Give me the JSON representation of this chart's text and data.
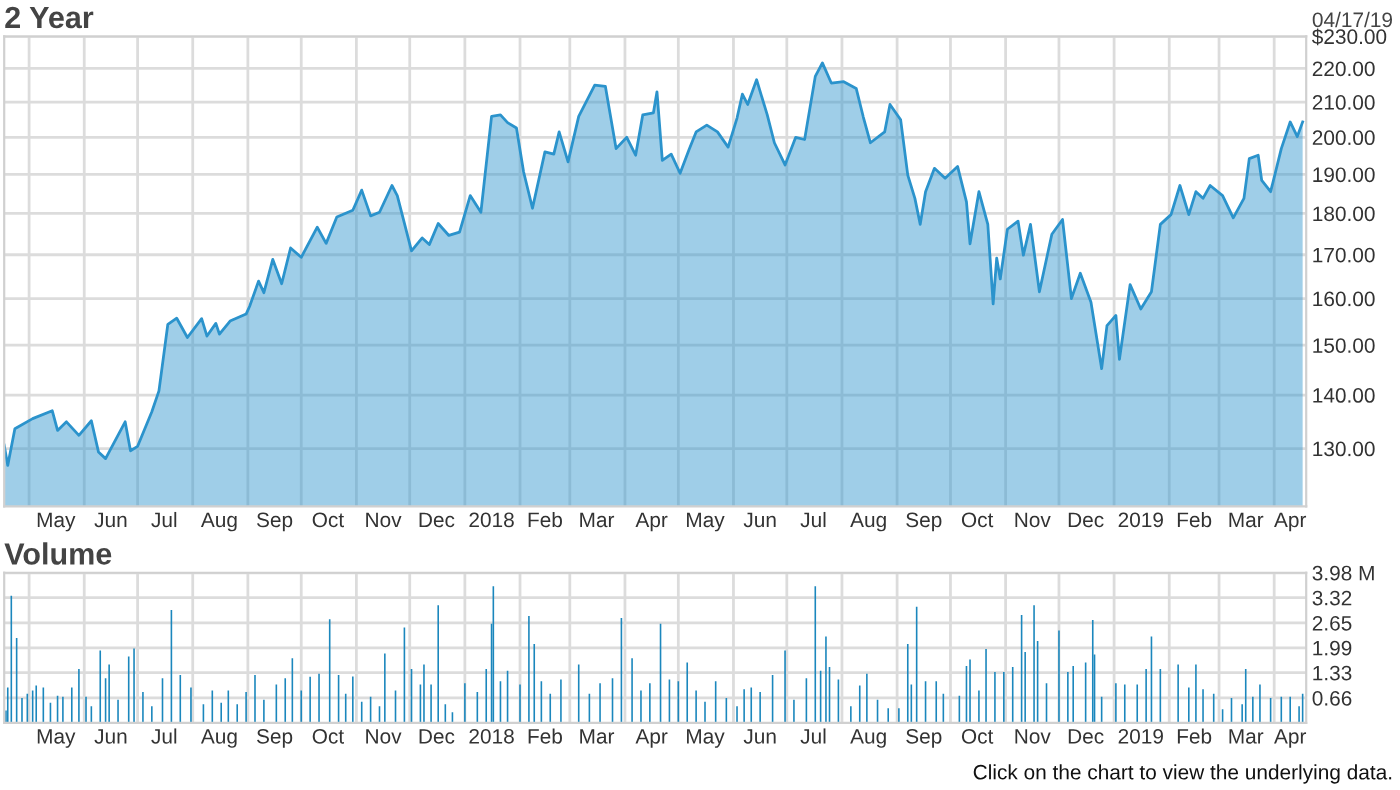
{
  "chart_data": [
    {
      "type": "area",
      "title": "2 Year",
      "annotations": [
        "04/17/19"
      ],
      "color": "#2b93cc",
      "log": true,
      "grid": true,
      "xlim": [
        "2017-04-17",
        "2019-04-19"
      ],
      "xticks": [
        {
          "value": "2017-05-01",
          "label": null
        },
        {
          "value": "2017-05-16",
          "label": "May"
        },
        {
          "value": "2017-06-01",
          "label": null
        },
        {
          "value": "2017-06-16",
          "label": "Jun"
        },
        {
          "value": "2017-07-01",
          "label": null
        },
        {
          "value": "2017-07-16",
          "label": "Jul"
        },
        {
          "value": "2017-08-01",
          "label": null
        },
        {
          "value": "2017-08-16",
          "label": "Aug"
        },
        {
          "value": "2017-09-01",
          "label": null
        },
        {
          "value": "2017-09-16",
          "label": "Sep"
        },
        {
          "value": "2017-10-01",
          "label": null
        },
        {
          "value": "2017-10-16",
          "label": "Oct"
        },
        {
          "value": "2017-11-01",
          "label": null
        },
        {
          "value": "2017-11-16",
          "label": "Nov"
        },
        {
          "value": "2017-12-01",
          "label": null
        },
        {
          "value": "2017-12-16",
          "label": "Dec"
        },
        {
          "value": "2018-01-01",
          "label": null
        },
        {
          "value": "2018-01-16",
          "label": "2018"
        },
        {
          "value": "2018-02-01",
          "label": null
        },
        {
          "value": "2018-02-15",
          "label": "Feb"
        },
        {
          "value": "2018-03-01",
          "label": null
        },
        {
          "value": "2018-03-16",
          "label": "Mar"
        },
        {
          "value": "2018-04-01",
          "label": null
        },
        {
          "value": "2018-04-16",
          "label": "Apr"
        },
        {
          "value": "2018-05-01",
          "label": null
        },
        {
          "value": "2018-05-16",
          "label": "May"
        },
        {
          "value": "2018-06-01",
          "label": null
        },
        {
          "value": "2018-06-16",
          "label": "Jun"
        },
        {
          "value": "2018-07-01",
          "label": null
        },
        {
          "value": "2018-07-16",
          "label": "Jul"
        },
        {
          "value": "2018-08-01",
          "label": null
        },
        {
          "value": "2018-08-16",
          "label": "Aug"
        },
        {
          "value": "2018-09-01",
          "label": null
        },
        {
          "value": "2018-09-16",
          "label": "Sep"
        },
        {
          "value": "2018-10-01",
          "label": null
        },
        {
          "value": "2018-10-16",
          "label": "Oct"
        },
        {
          "value": "2018-11-01",
          "label": null
        },
        {
          "value": "2018-11-16",
          "label": "Nov"
        },
        {
          "value": "2018-12-01",
          "label": null
        },
        {
          "value": "2018-12-16",
          "label": "Dec"
        },
        {
          "value": "2019-01-01",
          "label": null
        },
        {
          "value": "2019-01-16",
          "label": "2019"
        },
        {
          "value": "2019-02-01",
          "label": null
        },
        {
          "value": "2019-02-15",
          "label": "Feb"
        },
        {
          "value": "2019-03-01",
          "label": null
        },
        {
          "value": "2019-03-16",
          "label": "Mar"
        },
        {
          "value": "2019-04-01",
          "label": null
        },
        {
          "value": "2019-04-10",
          "label": "Apr"
        }
      ],
      "ylim": [
        120,
        230
      ],
      "yticks": [
        {
          "value": 130,
          "label": "130.00"
        },
        {
          "value": 140,
          "label": "140.00"
        },
        {
          "value": 150,
          "label": "150.00"
        },
        {
          "value": 160,
          "label": "160.00"
        },
        {
          "value": 170,
          "label": "170.00"
        },
        {
          "value": 180,
          "label": "180.00"
        },
        {
          "value": 190,
          "label": "190.00"
        },
        {
          "value": 200,
          "label": "200.00"
        },
        {
          "value": 210,
          "label": "210.00"
        },
        {
          "value": 220,
          "label": "220.00"
        },
        {
          "value": 230,
          "label": "$230.00"
        }
      ],
      "x": [
        "2017-04-17",
        "2017-04-19",
        "2017-04-23",
        "2017-05-03",
        "2017-05-14",
        "2017-05-17",
        "2017-05-22",
        "2017-05-29",
        "2017-06-05",
        "2017-06-09",
        "2017-06-13",
        "2017-06-18",
        "2017-06-24",
        "2017-06-27",
        "2017-07-01",
        "2017-07-09",
        "2017-07-13",
        "2017-07-18",
        "2017-07-23",
        "2017-07-29",
        "2017-08-06",
        "2017-08-09",
        "2017-08-14",
        "2017-08-16",
        "2017-08-22",
        "2017-08-31",
        "2017-09-02",
        "2017-09-07",
        "2017-09-10",
        "2017-09-15",
        "2017-09-20",
        "2017-09-25",
        "2017-10-01",
        "2017-10-10",
        "2017-10-15",
        "2017-10-21",
        "2017-10-30",
        "2017-11-04",
        "2017-11-09",
        "2017-11-14",
        "2017-11-21",
        "2017-11-24",
        "2017-12-02",
        "2017-12-08",
        "2017-12-12",
        "2017-12-17",
        "2017-12-23",
        "2017-12-29",
        "2018-01-04",
        "2018-01-10",
        "2018-01-16",
        "2018-01-21",
        "2018-01-25",
        "2018-01-30",
        "2018-02-03",
        "2018-02-08",
        "2018-02-15",
        "2018-02-20",
        "2018-02-23",
        "2018-02-28",
        "2018-03-06",
        "2018-03-15",
        "2018-03-21",
        "2018-03-27",
        "2018-04-02",
        "2018-04-07",
        "2018-04-11",
        "2018-04-17",
        "2018-04-19",
        "2018-04-22",
        "2018-04-27",
        "2018-05-02",
        "2018-05-07",
        "2018-05-11",
        "2018-05-17",
        "2018-05-23",
        "2018-05-29",
        "2018-06-03",
        "2018-06-06",
        "2018-06-09",
        "2018-06-14",
        "2018-06-20",
        "2018-06-24",
        "2018-06-30",
        "2018-07-06",
        "2018-07-11",
        "2018-07-17",
        "2018-07-21",
        "2018-07-26",
        "2018-08-02",
        "2018-08-09",
        "2018-08-13",
        "2018-08-17",
        "2018-08-25",
        "2018-08-28",
        "2018-09-03",
        "2018-09-07",
        "2018-09-11",
        "2018-09-14",
        "2018-09-17",
        "2018-09-22",
        "2018-09-28",
        "2018-10-05",
        "2018-10-10",
        "2018-10-12",
        "2018-10-17",
        "2018-10-22",
        "2018-10-25",
        "2018-10-27",
        "2018-10-29",
        "2018-11-02",
        "2018-11-08",
        "2018-11-11",
        "2018-11-15",
        "2018-11-20",
        "2018-11-27",
        "2018-12-03",
        "2018-12-08",
        "2018-12-13",
        "2018-12-19",
        "2018-12-25",
        "2018-12-28",
        "2019-01-02",
        "2019-01-04",
        "2019-01-10",
        "2019-01-16",
        "2019-01-22",
        "2019-01-27",
        "2019-02-02",
        "2019-02-07",
        "2019-02-12",
        "2019-02-16",
        "2019-02-20",
        "2019-02-24",
        "2019-03-03",
        "2019-03-09",
        "2019-03-15",
        "2019-03-18",
        "2019-03-23",
        "2019-03-25",
        "2019-03-30",
        "2019-04-05",
        "2019-04-10",
        "2019-04-14",
        "2019-04-17"
      ],
      "values": [
        130.6,
        127.0,
        133.6,
        135.5,
        137.0,
        133.3,
        134.9,
        132.4,
        135.1,
        129.4,
        128.2,
        131.2,
        134.9,
        129.6,
        130.4,
        136.8,
        140.8,
        154.4,
        155.7,
        151.6,
        155.6,
        151.9,
        154.6,
        152.3,
        155.1,
        156.6,
        158.3,
        163.9,
        161.3,
        168.9,
        163.3,
        171.6,
        169.4,
        176.6,
        172.7,
        179.1,
        180.8,
        185.9,
        179.4,
        180.3,
        187.1,
        184.5,
        170.9,
        174.0,
        172.4,
        177.5,
        174.6,
        175.4,
        184.5,
        180.3,
        205.9,
        206.3,
        204.1,
        202.6,
        190.7,
        181.3,
        196.0,
        195.4,
        201.5,
        193.3,
        205.9,
        215.0,
        214.6,
        196.9,
        200.0,
        195.1,
        206.3,
        206.9,
        213.0,
        193.7,
        195.4,
        190.3,
        196.6,
        201.5,
        203.4,
        201.5,
        197.3,
        205.4,
        212.3,
        209.3,
        216.6,
        206.3,
        198.5,
        192.5,
        200.0,
        199.4,
        217.6,
        221.7,
        215.6,
        216.0,
        214.0,
        205.7,
        198.5,
        201.5,
        209.3,
        204.9,
        189.8,
        183.8,
        177.3,
        185.5,
        191.6,
        189.0,
        192.1,
        182.9,
        172.6,
        185.5,
        177.3,
        158.8,
        169.2,
        164.4,
        176.1,
        178.1,
        169.9,
        177.3,
        161.5,
        174.9,
        178.5,
        160.0,
        165.7,
        159.2,
        145.2,
        154.1,
        156.3,
        147.1,
        163.1,
        157.7,
        161.5,
        177.3,
        179.7,
        187.1,
        179.7,
        185.5,
        183.8,
        187.1,
        184.5,
        178.9,
        183.8,
        194.2,
        195.1,
        188.4,
        185.5,
        196.9,
        204.3,
        200.2,
        204.3
      ]
    },
    {
      "type": "bar",
      "title": "Volume",
      "annotations": [
        "Click on the chart to view the underlying data."
      ],
      "color": "#1b87bd",
      "grid": true,
      "xlim": [
        "2017-04-17",
        "2019-04-19"
      ],
      "xticks": [
        {
          "value": "2017-05-01",
          "label": null
        },
        {
          "value": "2017-05-16",
          "label": "May"
        },
        {
          "value": "2017-06-01",
          "label": null
        },
        {
          "value": "2017-06-16",
          "label": "Jun"
        },
        {
          "value": "2017-07-01",
          "label": null
        },
        {
          "value": "2017-07-16",
          "label": "Jul"
        },
        {
          "value": "2017-08-01",
          "label": null
        },
        {
          "value": "2017-08-16",
          "label": "Aug"
        },
        {
          "value": "2017-09-01",
          "label": null
        },
        {
          "value": "2017-09-16",
          "label": "Sep"
        },
        {
          "value": "2017-10-01",
          "label": null
        },
        {
          "value": "2017-10-16",
          "label": "Oct"
        },
        {
          "value": "2017-11-01",
          "label": null
        },
        {
          "value": "2017-11-16",
          "label": "Nov"
        },
        {
          "value": "2017-12-01",
          "label": null
        },
        {
          "value": "2017-12-16",
          "label": "Dec"
        },
        {
          "value": "2018-01-01",
          "label": null
        },
        {
          "value": "2018-01-16",
          "label": "2018"
        },
        {
          "value": "2018-02-01",
          "label": null
        },
        {
          "value": "2018-02-15",
          "label": "Feb"
        },
        {
          "value": "2018-03-01",
          "label": null
        },
        {
          "value": "2018-03-16",
          "label": "Mar"
        },
        {
          "value": "2018-04-01",
          "label": null
        },
        {
          "value": "2018-04-16",
          "label": "Apr"
        },
        {
          "value": "2018-05-01",
          "label": null
        },
        {
          "value": "2018-05-16",
          "label": "May"
        },
        {
          "value": "2018-06-01",
          "label": null
        },
        {
          "value": "2018-06-16",
          "label": "Jun"
        },
        {
          "value": "2018-07-01",
          "label": null
        },
        {
          "value": "2018-07-16",
          "label": "Jul"
        },
        {
          "value": "2018-08-01",
          "label": null
        },
        {
          "value": "2018-08-16",
          "label": "Aug"
        },
        {
          "value": "2018-09-01",
          "label": null
        },
        {
          "value": "2018-09-16",
          "label": "Sep"
        },
        {
          "value": "2018-10-01",
          "label": null
        },
        {
          "value": "2018-10-16",
          "label": "Oct"
        },
        {
          "value": "2018-11-01",
          "label": null
        },
        {
          "value": "2018-11-16",
          "label": "Nov"
        },
        {
          "value": "2018-12-01",
          "label": null
        },
        {
          "value": "2018-12-16",
          "label": "Dec"
        },
        {
          "value": "2019-01-01",
          "label": null
        },
        {
          "value": "2019-01-16",
          "label": "2019"
        },
        {
          "value": "2019-02-01",
          "label": null
        },
        {
          "value": "2019-02-15",
          "label": "Feb"
        },
        {
          "value": "2019-03-01",
          "label": null
        },
        {
          "value": "2019-03-16",
          "label": "Mar"
        },
        {
          "value": "2019-04-01",
          "label": null
        },
        {
          "value": "2019-04-10",
          "label": "Apr"
        }
      ],
      "ylim": [
        0,
        3.98
      ],
      "yticks": [
        0.66,
        1.33,
        1.99,
        2.65,
        3.32,
        {
          "value": 3.98,
          "label": "3.98 M"
        }
      ],
      "x": [
        "2017-04-18",
        "2017-04-19",
        "2017-04-21",
        "2017-04-24",
        "2017-04-27",
        "2017-04-30",
        "2017-05-03",
        "2017-05-05",
        "2017-05-09",
        "2017-05-13",
        "2017-05-17",
        "2017-05-20",
        "2017-05-25",
        "2017-05-29",
        "2017-06-02",
        "2017-06-05",
        "2017-06-10",
        "2017-06-13",
        "2017-06-15",
        "2017-06-20",
        "2017-06-26",
        "2017-06-29",
        "2017-07-04",
        "2017-07-09",
        "2017-07-15",
        "2017-07-20",
        "2017-07-25",
        "2017-07-31",
        "2017-08-07",
        "2017-08-12",
        "2017-08-17",
        "2017-08-21",
        "2017-08-26",
        "2017-08-31",
        "2017-09-05",
        "2017-09-10",
        "2017-09-17",
        "2017-09-22",
        "2017-09-26",
        "2017-10-01",
        "2017-10-06",
        "2017-10-11",
        "2017-10-17",
        "2017-10-22",
        "2017-10-26",
        "2017-10-30",
        "2017-11-04",
        "2017-11-09",
        "2017-11-14",
        "2017-11-17",
        "2017-11-23",
        "2017-11-28",
        "2017-12-02",
        "2017-12-07",
        "2017-12-09",
        "2017-12-13",
        "2017-12-17",
        "2017-12-21",
        "2017-12-25",
        "2018-01-01",
        "2018-01-08",
        "2018-01-13",
        "2018-01-16",
        "2018-01-17",
        "2018-01-21",
        "2018-01-25",
        "2018-02-01",
        "2018-02-06",
        "2018-02-09",
        "2018-02-13",
        "2018-02-18",
        "2018-02-24",
        "2018-03-06",
        "2018-03-12",
        "2018-03-18",
        "2018-03-25",
        "2018-03-30",
        "2018-04-05",
        "2018-04-10",
        "2018-04-15",
        "2018-04-21",
        "2018-04-26",
        "2018-05-01",
        "2018-05-06",
        "2018-05-11",
        "2018-05-16",
        "2018-05-22",
        "2018-05-28",
        "2018-06-03",
        "2018-06-07",
        "2018-06-11",
        "2018-06-16",
        "2018-06-23",
        "2018-06-30",
        "2018-07-05",
        "2018-07-12",
        "2018-07-17",
        "2018-07-20",
        "2018-07-23",
        "2018-07-25",
        "2018-07-30",
        "2018-08-06",
        "2018-08-11",
        "2018-08-15",
        "2018-08-21",
        "2018-08-27",
        "2018-09-02",
        "2018-09-07",
        "2018-09-09",
        "2018-09-12",
        "2018-09-17",
        "2018-09-23",
        "2018-09-27",
        "2018-10-06",
        "2018-10-10",
        "2018-10-12",
        "2018-10-17",
        "2018-10-21",
        "2018-10-26",
        "2018-10-31",
        "2018-11-05",
        "2018-11-10",
        "2018-11-12",
        "2018-11-17",
        "2018-11-19",
        "2018-11-24",
        "2018-12-01",
        "2018-12-06",
        "2018-12-09",
        "2018-12-16",
        "2018-12-20",
        "2018-12-21",
        "2018-12-25",
        "2019-01-02",
        "2019-01-07",
        "2019-01-14",
        "2019-01-19",
        "2019-01-22",
        "2019-01-27",
        "2019-02-06",
        "2019-02-12",
        "2019-02-16",
        "2019-02-20",
        "2019-02-26",
        "2019-03-03",
        "2019-03-08",
        "2019-03-14",
        "2019-03-16",
        "2019-03-20",
        "2019-03-24",
        "2019-03-30",
        "2019-04-05",
        "2019-04-10",
        "2019-04-15",
        "2019-04-17"
      ],
      "values": [
        0.33,
        0.94,
        3.37,
        2.25,
        0.66,
        0.77,
        0.86,
        0.99,
        0.94,
        0.53,
        0.72,
        0.69,
        0.94,
        1.43,
        0.69,
        0.44,
        1.92,
        1.18,
        1.55,
        0.61,
        1.76,
        1.97,
        0.82,
        0.44,
        1.18,
        2.99,
        1.27,
        0.94,
        0.49,
        0.86,
        0.53,
        0.86,
        0.49,
        0.82,
        1.27,
        0.61,
        1.02,
        1.18,
        1.71,
        0.86,
        1.22,
        1.3,
        2.75,
        1.27,
        0.77,
        1.23,
        0.56,
        0.69,
        0.44,
        1.84,
        0.86,
        2.53,
        1.43,
        1.02,
        1.55,
        1.02,
        3.12,
        0.49,
        0.28,
        1.05,
        0.82,
        1.43,
        2.63,
        3.62,
        1.1,
        1.38,
        1.02,
        2.83,
        2.09,
        1.1,
        0.77,
        1.15,
        1.55,
        0.77,
        1.05,
        1.18,
        2.78,
        1.71,
        0.86,
        1.05,
        2.63,
        1.15,
        1.1,
        1.6,
        0.86,
        0.56,
        1.1,
        0.66,
        0.44,
        0.89,
        0.94,
        0.82,
        1.27,
        1.92,
        0.61,
        1.18,
        3.62,
        1.38,
        2.29,
        1.48,
        1.15,
        0.44,
        0.99,
        1.3,
        0.61,
        0.39,
        0.39,
        2.09,
        1.02,
        3.08,
        1.1,
        1.1,
        0.77,
        0.72,
        1.51,
        1.68,
        0.86,
        1.96,
        1.35,
        1.35,
        1.48,
        2.86,
        1.88,
        3.12,
        2.17,
        1.05,
        2.45,
        1.35,
        1.51,
        1.6,
        2.73,
        1.81,
        0.69,
        1.05,
        1.02,
        1.02,
        1.43,
        2.29,
        1.43,
        1.55,
        0.94,
        1.55,
        0.89,
        0.77,
        0.36,
        0.66,
        0.49,
        1.43,
        0.69,
        1.02,
        0.66,
        0.69,
        0.69,
        0.44,
        0.77
      ]
    }
  ]
}
